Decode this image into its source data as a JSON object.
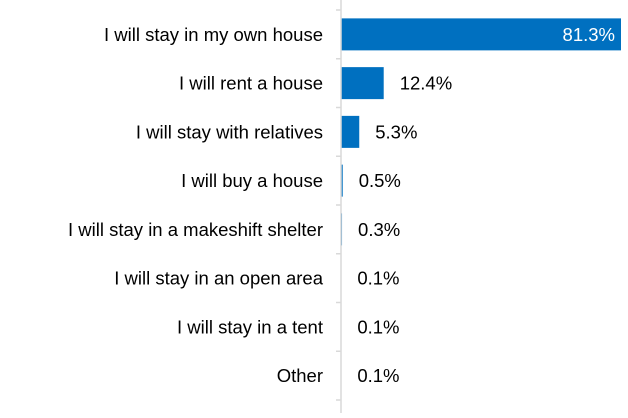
{
  "chart_data": {
    "type": "bar",
    "orientation": "horizontal",
    "categories": [
      "I will stay in my own house",
      "I will rent a house",
      "I will stay with relatives",
      "I will buy a house",
      "I will stay in a makeshift shelter",
      "I will stay in an open area",
      "I will stay in a tent",
      "Other"
    ],
    "values": [
      81.3,
      12.4,
      5.3,
      0.5,
      0.3,
      0.1,
      0.1,
      0.1
    ],
    "data_labels": [
      "81.3%",
      "12.4%",
      "5.3%",
      "0.5%",
      "0.3%",
      "0.1%",
      "0.1%",
      "0.1%"
    ],
    "title": "",
    "xlabel": "",
    "ylabel": "",
    "xlim": [
      0,
      81.3
    ],
    "grid": false,
    "legend": "none",
    "colors": {
      "bar": "#0070C0",
      "label_inside": "#FFFFFF",
      "label_outside": "#000000",
      "axis": "#D9D9D9",
      "text": "#000000"
    }
  }
}
